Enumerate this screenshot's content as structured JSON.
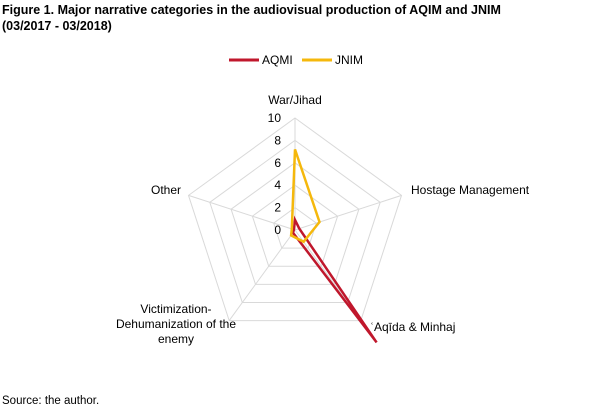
{
  "figure": {
    "title_line1": "Figure 1. Major narrative categories in the audiovisual production of AQIM and JNIM",
    "title_line2": "(03/2017 - 03/2018)",
    "source": "Source: the author."
  },
  "chart_data": {
    "type": "radar",
    "axes": [
      "War/Jihad",
      "Hostage Management",
      "ʿAqīda & Minhaj",
      "Victimization-Dehumanization of the enemy",
      "Other"
    ],
    "axis_label_lines": [
      [
        "War/Jihad"
      ],
      [
        "Hostage Management"
      ],
      [
        "ʿAqīda & Minhaj"
      ],
      [
        "Victimization-",
        "Dehumanization of the",
        "enemy"
      ],
      [
        "Other"
      ]
    ],
    "r_ticks": [
      0,
      2,
      4,
      6,
      8,
      10
    ],
    "r_range": [
      0,
      10
    ],
    "grid": true,
    "legend_position": "top",
    "series": [
      {
        "name": "AQMI",
        "color": "#c0172c",
        "values": [
          0.9,
          0.4,
          12.4,
          0.3,
          0.1
        ]
      },
      {
        "name": "JNIM",
        "color": "#f5b80c",
        "values": [
          7.2,
          2.3,
          1.3,
          0.6,
          0.3
        ]
      }
    ]
  }
}
